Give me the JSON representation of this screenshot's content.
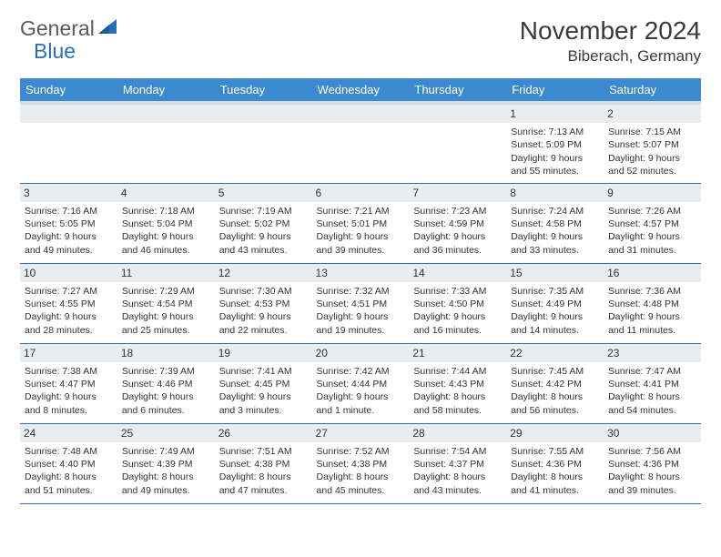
{
  "logo": {
    "text_general": "General",
    "text_blue": "Blue",
    "triangle_color": "#2a6fb5"
  },
  "header": {
    "month_title": "November 2024",
    "location": "Biberach, Germany"
  },
  "colors": {
    "header_bg": "#3b8ad0",
    "header_text": "#ffffff",
    "subheader_bg": "#d5dde3",
    "daynum_bg": "#e9edf0",
    "border": "#2a6fb5"
  },
  "days_of_week": [
    "Sunday",
    "Monday",
    "Tuesday",
    "Wednesday",
    "Thursday",
    "Friday",
    "Saturday"
  ],
  "weeks": [
    [
      {
        "n": "",
        "t": ""
      },
      {
        "n": "",
        "t": ""
      },
      {
        "n": "",
        "t": ""
      },
      {
        "n": "",
        "t": ""
      },
      {
        "n": "",
        "t": ""
      },
      {
        "n": "1",
        "t": "Sunrise: 7:13 AM\nSunset: 5:09 PM\nDaylight: 9 hours and 55 minutes."
      },
      {
        "n": "2",
        "t": "Sunrise: 7:15 AM\nSunset: 5:07 PM\nDaylight: 9 hours and 52 minutes."
      }
    ],
    [
      {
        "n": "3",
        "t": "Sunrise: 7:16 AM\nSunset: 5:05 PM\nDaylight: 9 hours and 49 minutes."
      },
      {
        "n": "4",
        "t": "Sunrise: 7:18 AM\nSunset: 5:04 PM\nDaylight: 9 hours and 46 minutes."
      },
      {
        "n": "5",
        "t": "Sunrise: 7:19 AM\nSunset: 5:02 PM\nDaylight: 9 hours and 43 minutes."
      },
      {
        "n": "6",
        "t": "Sunrise: 7:21 AM\nSunset: 5:01 PM\nDaylight: 9 hours and 39 minutes."
      },
      {
        "n": "7",
        "t": "Sunrise: 7:23 AM\nSunset: 4:59 PM\nDaylight: 9 hours and 36 minutes."
      },
      {
        "n": "8",
        "t": "Sunrise: 7:24 AM\nSunset: 4:58 PM\nDaylight: 9 hours and 33 minutes."
      },
      {
        "n": "9",
        "t": "Sunrise: 7:26 AM\nSunset: 4:57 PM\nDaylight: 9 hours and 31 minutes."
      }
    ],
    [
      {
        "n": "10",
        "t": "Sunrise: 7:27 AM\nSunset: 4:55 PM\nDaylight: 9 hours and 28 minutes."
      },
      {
        "n": "11",
        "t": "Sunrise: 7:29 AM\nSunset: 4:54 PM\nDaylight: 9 hours and 25 minutes."
      },
      {
        "n": "12",
        "t": "Sunrise: 7:30 AM\nSunset: 4:53 PM\nDaylight: 9 hours and 22 minutes."
      },
      {
        "n": "13",
        "t": "Sunrise: 7:32 AM\nSunset: 4:51 PM\nDaylight: 9 hours and 19 minutes."
      },
      {
        "n": "14",
        "t": "Sunrise: 7:33 AM\nSunset: 4:50 PM\nDaylight: 9 hours and 16 minutes."
      },
      {
        "n": "15",
        "t": "Sunrise: 7:35 AM\nSunset: 4:49 PM\nDaylight: 9 hours and 14 minutes."
      },
      {
        "n": "16",
        "t": "Sunrise: 7:36 AM\nSunset: 4:48 PM\nDaylight: 9 hours and 11 minutes."
      }
    ],
    [
      {
        "n": "17",
        "t": "Sunrise: 7:38 AM\nSunset: 4:47 PM\nDaylight: 9 hours and 8 minutes."
      },
      {
        "n": "18",
        "t": "Sunrise: 7:39 AM\nSunset: 4:46 PM\nDaylight: 9 hours and 6 minutes."
      },
      {
        "n": "19",
        "t": "Sunrise: 7:41 AM\nSunset: 4:45 PM\nDaylight: 9 hours and 3 minutes."
      },
      {
        "n": "20",
        "t": "Sunrise: 7:42 AM\nSunset: 4:44 PM\nDaylight: 9 hours and 1 minute."
      },
      {
        "n": "21",
        "t": "Sunrise: 7:44 AM\nSunset: 4:43 PM\nDaylight: 8 hours and 58 minutes."
      },
      {
        "n": "22",
        "t": "Sunrise: 7:45 AM\nSunset: 4:42 PM\nDaylight: 8 hours and 56 minutes."
      },
      {
        "n": "23",
        "t": "Sunrise: 7:47 AM\nSunset: 4:41 PM\nDaylight: 8 hours and 54 minutes."
      }
    ],
    [
      {
        "n": "24",
        "t": "Sunrise: 7:48 AM\nSunset: 4:40 PM\nDaylight: 8 hours and 51 minutes."
      },
      {
        "n": "25",
        "t": "Sunrise: 7:49 AM\nSunset: 4:39 PM\nDaylight: 8 hours and 49 minutes."
      },
      {
        "n": "26",
        "t": "Sunrise: 7:51 AM\nSunset: 4:38 PM\nDaylight: 8 hours and 47 minutes."
      },
      {
        "n": "27",
        "t": "Sunrise: 7:52 AM\nSunset: 4:38 PM\nDaylight: 8 hours and 45 minutes."
      },
      {
        "n": "28",
        "t": "Sunrise: 7:54 AM\nSunset: 4:37 PM\nDaylight: 8 hours and 43 minutes."
      },
      {
        "n": "29",
        "t": "Sunrise: 7:55 AM\nSunset: 4:36 PM\nDaylight: 8 hours and 41 minutes."
      },
      {
        "n": "30",
        "t": "Sunrise: 7:56 AM\nSunset: 4:36 PM\nDaylight: 8 hours and 39 minutes."
      }
    ]
  ]
}
